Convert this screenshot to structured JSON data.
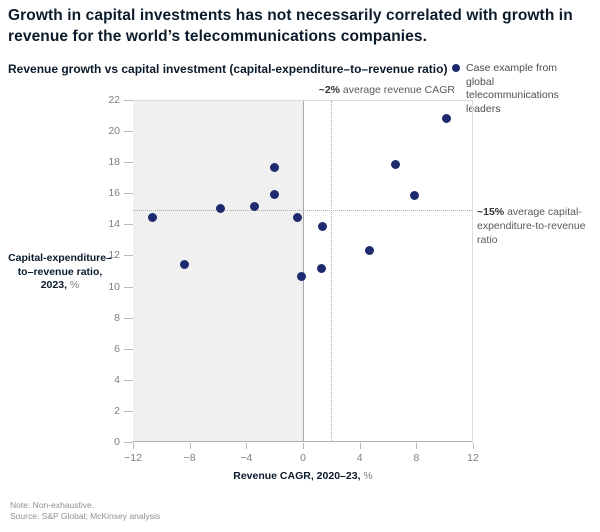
{
  "header": {
    "title": "Growth in capital investments has not necessarily correlated with growth in revenue for the world’s telecommunications companies."
  },
  "chart": {
    "subtitle": "Revenue growth vs capital investment (capital-expenditure–to–revenue ratio)",
    "legend": {
      "label": "Case example from global telecommunications leaders",
      "marker_color": "#1e2a6e"
    },
    "annotations": {
      "revenue_cagr": {
        "bold": "~2%",
        "rest": " average revenue CAGR"
      },
      "capex_ratio": {
        "bold": "~15%",
        "rest": " average capital-expenditure-to-revenue ratio"
      }
    },
    "ylabel": {
      "line1": "Capital-expenditure–",
      "line2": "to–revenue ratio,",
      "line3_bold": "2023,",
      "line3_unit": " %"
    },
    "xlabel": {
      "bold": "Revenue CAGR, 2020–23,",
      "unit": " %"
    }
  },
  "chart_data": {
    "type": "scatter",
    "title": "Revenue growth vs capital investment (capital-expenditure–to–revenue ratio)",
    "xlabel": "Revenue CAGR, 2020–23, %",
    "ylabel": "Capital-expenditure–to–revenue ratio, 2023, %",
    "xlim": [
      -12,
      12
    ],
    "ylim": [
      0,
      22
    ],
    "x_ticks": [
      -12,
      -8,
      -4,
      0,
      4,
      8,
      12
    ],
    "x_tick_labels": [
      "−12",
      "−8",
      "−4",
      "0",
      "4",
      "8",
      "12"
    ],
    "y_ticks": [
      0,
      2,
      4,
      6,
      8,
      10,
      12,
      14,
      16,
      18,
      20,
      22
    ],
    "y_tick_labels": [
      "0",
      "2",
      "4",
      "6",
      "8",
      "10",
      "12",
      "14",
      "16",
      "18",
      "20",
      "22"
    ],
    "points": [
      {
        "x": -10.6,
        "y": 14.5
      },
      {
        "x": -8.4,
        "y": 11.5
      },
      {
        "x": -5.8,
        "y": 15.1
      },
      {
        "x": -3.4,
        "y": 15.2
      },
      {
        "x": -2.0,
        "y": 17.7
      },
      {
        "x": -2.0,
        "y": 16.0
      },
      {
        "x": -0.4,
        "y": 14.5
      },
      {
        "x": -0.1,
        "y": 10.7
      },
      {
        "x": 1.4,
        "y": 13.9
      },
      {
        "x": 1.3,
        "y": 11.2
      },
      {
        "x": 4.7,
        "y": 12.4
      },
      {
        "x": 6.5,
        "y": 17.9
      },
      {
        "x": 7.9,
        "y": 15.9
      },
      {
        "x": 10.1,
        "y": 20.9
      }
    ],
    "point_color": "#1e2a6e",
    "shaded_region_x": [
      -12,
      0
    ],
    "shaded_region_color": "#f0f0f0",
    "reference_lines": {
      "vertical_solid_x": 0,
      "vertical_dotted_x": 2,
      "horizontal_dotted_y": 15
    },
    "legend_label": "Case example from global telecommunications leaders",
    "legend_position": "top-right",
    "grid": false
  },
  "footer": {
    "note": "Note: Non-exhaustive.",
    "source": "Source: S&P Global; McKinsey analysis"
  }
}
